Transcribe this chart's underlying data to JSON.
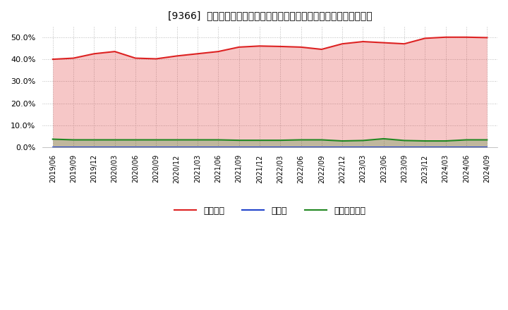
{
  "title": "[9366]  自己資本、のれん、繰延税金資産の総資産に対する比率の推移",
  "x_labels": [
    "2019/06",
    "2019/09",
    "2019/12",
    "2020/03",
    "2020/06",
    "2020/09",
    "2020/12",
    "2021/03",
    "2021/06",
    "2021/09",
    "2021/12",
    "2022/03",
    "2022/06",
    "2022/09",
    "2022/12",
    "2023/03",
    "2023/06",
    "2023/09",
    "2023/12",
    "2024/03",
    "2024/06",
    "2024/09"
  ],
  "jikoshihon": [
    40.0,
    40.5,
    42.5,
    43.5,
    40.5,
    40.2,
    41.5,
    42.5,
    43.5,
    45.5,
    46.0,
    45.8,
    45.5,
    44.5,
    47.0,
    48.0,
    47.5,
    47.0,
    49.5,
    50.0,
    50.0,
    49.8
  ],
  "noren": [
    0.3,
    0.3,
    0.3,
    0.3,
    0.3,
    0.3,
    0.3,
    0.3,
    0.3,
    0.3,
    0.3,
    0.3,
    0.3,
    0.3,
    0.3,
    0.3,
    0.3,
    0.3,
    0.3,
    0.3,
    0.3,
    0.3
  ],
  "kurinobe": [
    3.8,
    3.5,
    3.5,
    3.5,
    3.5,
    3.5,
    3.5,
    3.5,
    3.5,
    3.3,
    3.3,
    3.3,
    3.5,
    3.5,
    3.0,
    3.2,
    4.0,
    3.2,
    3.0,
    3.0,
    3.5,
    3.5
  ],
  "jikoshihon_color": "#dd2222",
  "noren_color": "#2244cc",
  "kurinobe_color": "#228822",
  "background_color": "#ffffff",
  "grid_color": "#bbbbbb",
  "ylim": [
    0,
    55
  ],
  "yticks": [
    0.0,
    10.0,
    20.0,
    30.0,
    40.0,
    50.0
  ],
  "legend_labels": [
    "自己資本",
    "のれん",
    "繰延税金資産"
  ]
}
